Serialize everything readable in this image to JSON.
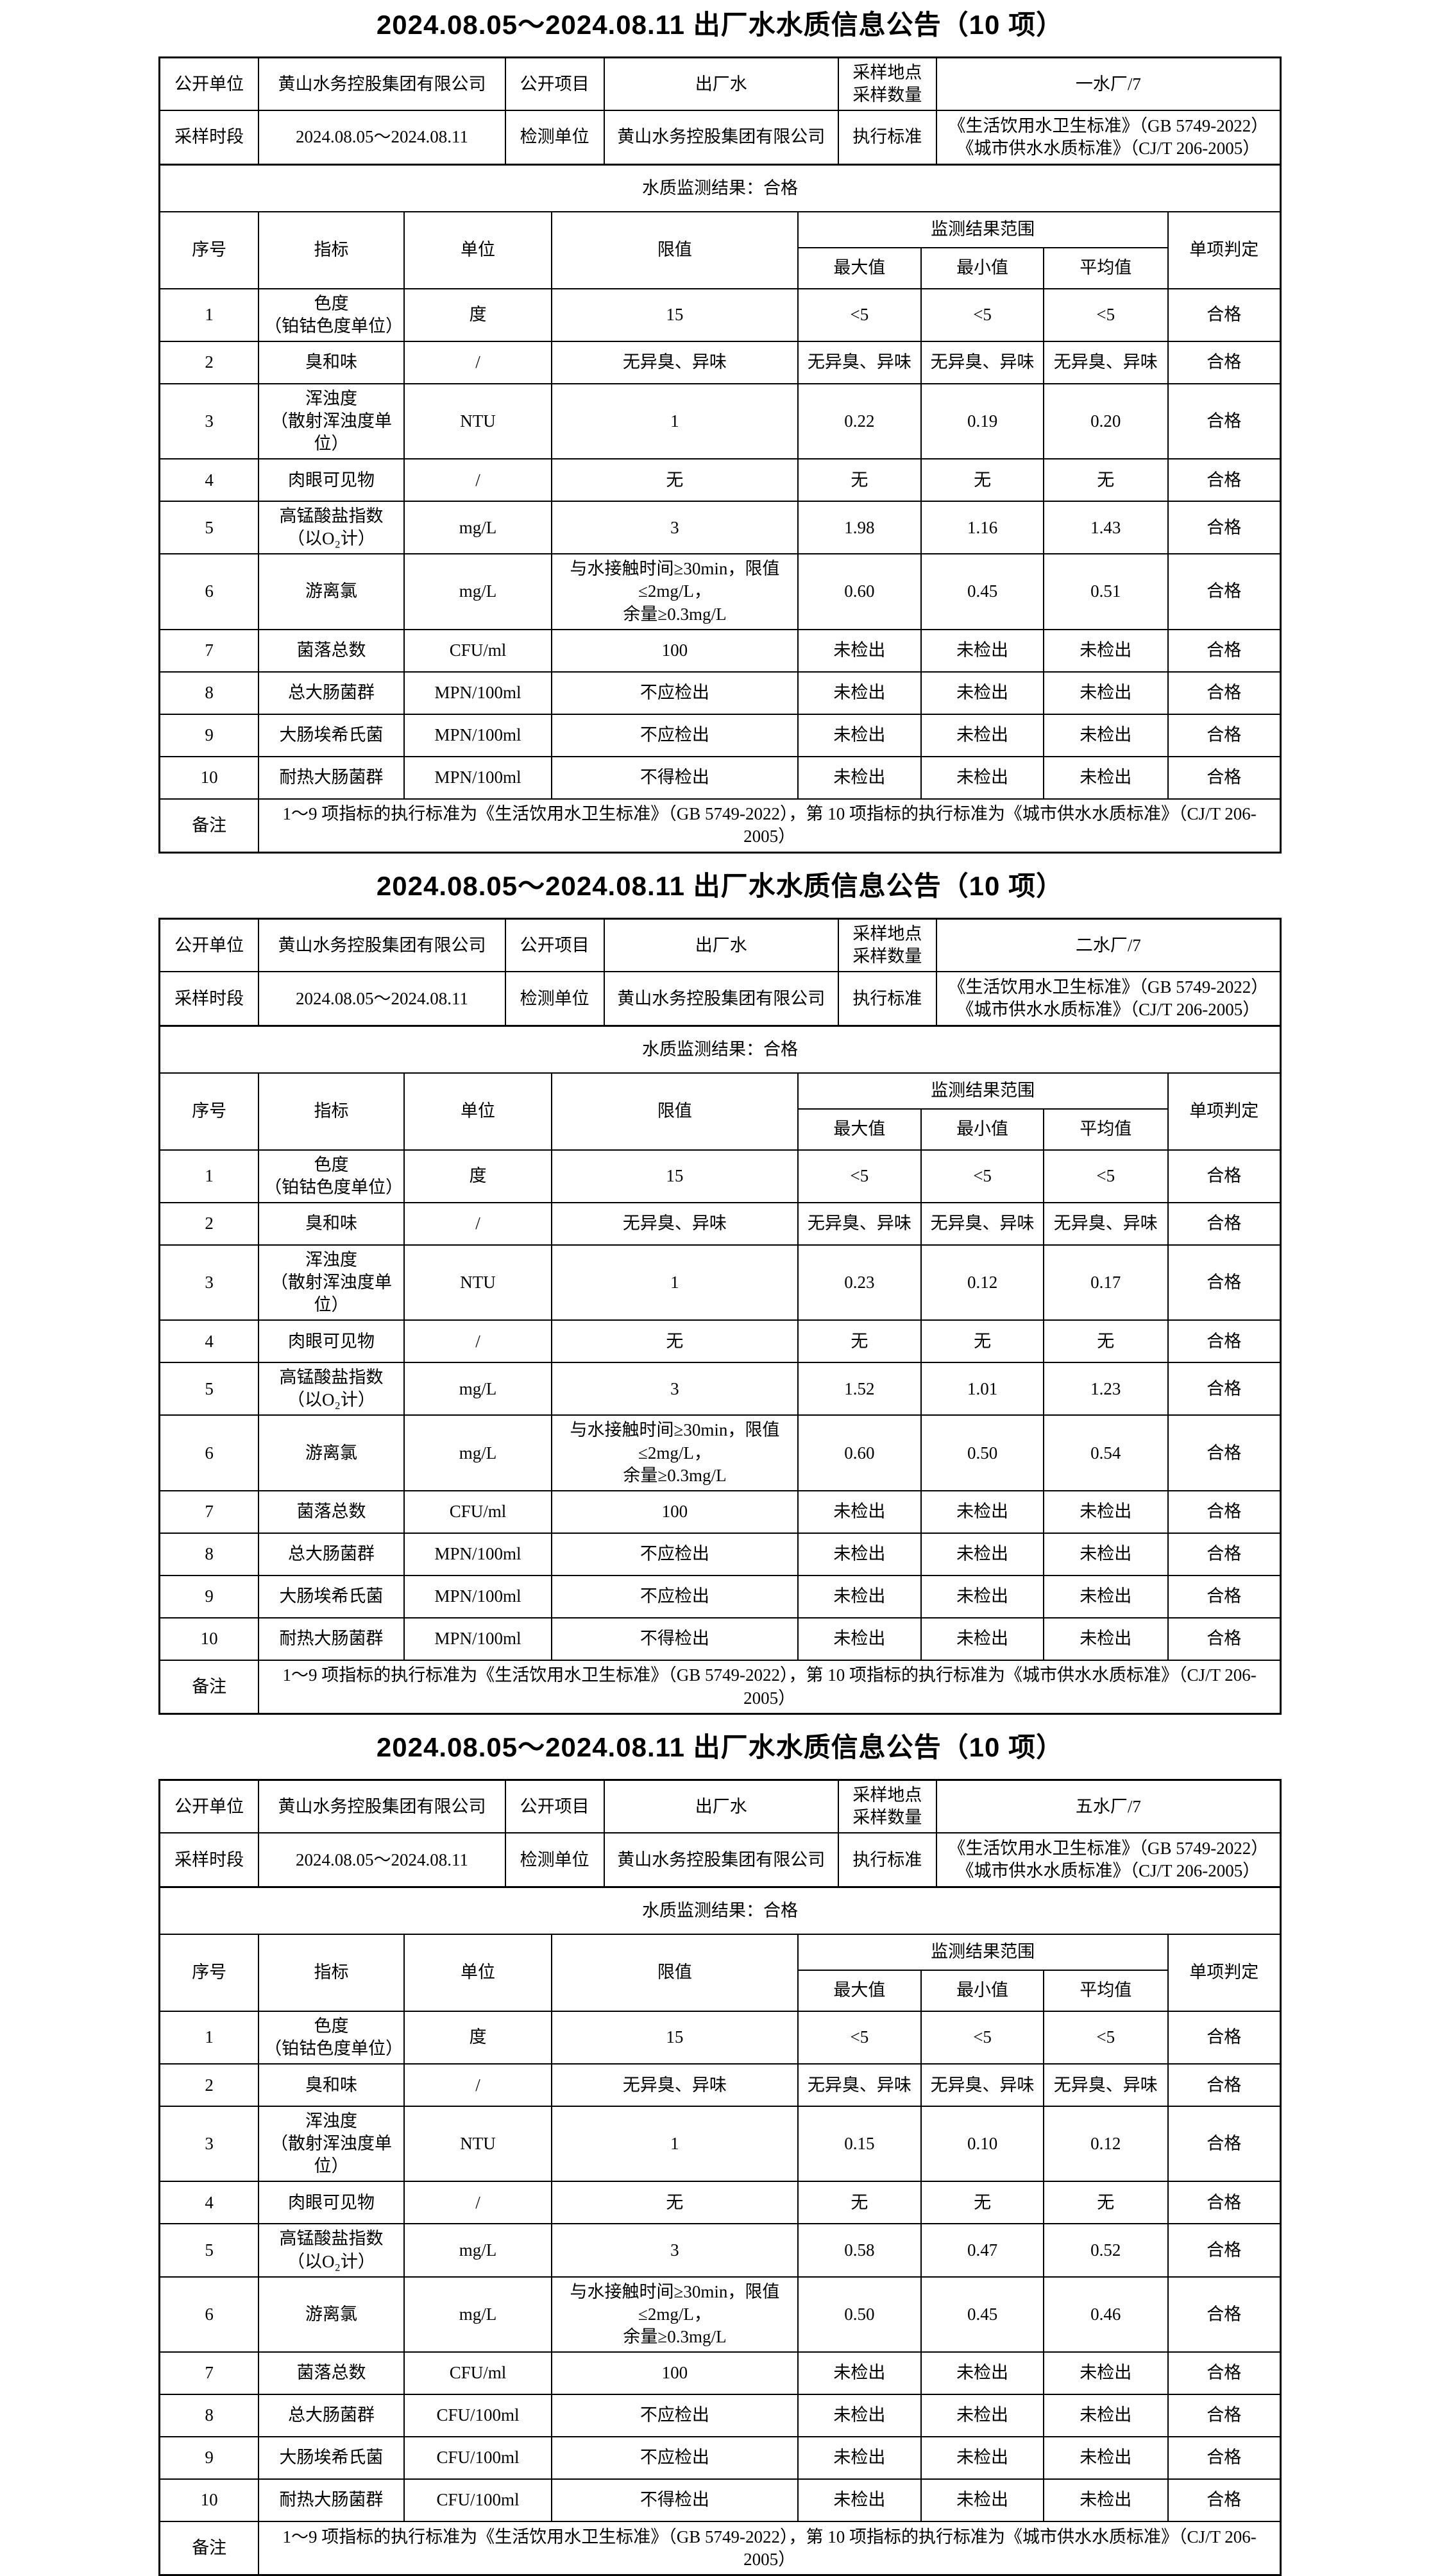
{
  "page": {
    "background": "#ffffff",
    "text_color": "#000000",
    "border_color": "#000000"
  },
  "sections": [
    {
      "title": "2024.08.05～2024.08.11 出厂水水质信息公告（10 项）",
      "info": {
        "public_unit_label": "公开单位",
        "public_unit": "黄山水务控股集团有限公司",
        "public_item_label": "公开项目",
        "public_item": "出厂水",
        "sampling_label": "采样地点\n采样数量",
        "sampling_value": "一水厂/7",
        "period_label": "采样时段",
        "period": "2024.08.05～2024.08.11",
        "test_unit_label": "检测单位",
        "test_unit": "黄山水务控股集团有限公司",
        "standard_label": "执行标准",
        "standard": "《生活饮用水卫生标准》（GB 5749-2022）\n《城市供水水质标准》（CJ/T 206-2005）"
      },
      "result": "水质监测结果：合格",
      "columns": {
        "seq": "序号",
        "indicator": "指标",
        "unit": "单位",
        "limit": "限值",
        "range": "监测结果范围",
        "max": "最大值",
        "min": "最小值",
        "avg": "平均值",
        "judge": "单项判定"
      },
      "rows": [
        {
          "seq": "1",
          "indicator": "色度\n（铂钴色度单位）",
          "unit": "度",
          "limit": "15",
          "max": "<5",
          "min": "<5",
          "avg": "<5",
          "judge": "合格"
        },
        {
          "seq": "2",
          "indicator": "臭和味",
          "unit": "/",
          "limit": "无异臭、异味",
          "max": "无异臭、异味",
          "min": "无异臭、异味",
          "avg": "无异臭、异味",
          "judge": "合格"
        },
        {
          "seq": "3",
          "indicator": "浑浊度\n（散射浑浊度单位）",
          "unit": "NTU",
          "limit": "1",
          "max": "0.22",
          "min": "0.19",
          "avg": "0.20",
          "judge": "合格"
        },
        {
          "seq": "4",
          "indicator": "肉眼可见物",
          "unit": "/",
          "limit": "无",
          "max": "无",
          "min": "无",
          "avg": "无",
          "judge": "合格"
        },
        {
          "seq": "5",
          "indicator": "高锰酸盐指数\n（以O₂计）",
          "unit": "mg/L",
          "limit": "3",
          "max": "1.98",
          "min": "1.16",
          "avg": "1.43",
          "judge": "合格"
        },
        {
          "seq": "6",
          "indicator": "游离氯",
          "unit": "mg/L",
          "limit": "与水接触时间≥30min，限值≤2mg/L，\n余量≥0.3mg/L",
          "max": "0.60",
          "min": "0.45",
          "avg": "0.51",
          "judge": "合格"
        },
        {
          "seq": "7",
          "indicator": "菌落总数",
          "unit": "CFU/ml",
          "limit": "100",
          "max": "未检出",
          "min": "未检出",
          "avg": "未检出",
          "judge": "合格"
        },
        {
          "seq": "8",
          "indicator": "总大肠菌群",
          "unit": "MPN/100ml",
          "limit": "不应检出",
          "max": "未检出",
          "min": "未检出",
          "avg": "未检出",
          "judge": "合格"
        },
        {
          "seq": "9",
          "indicator": "大肠埃希氏菌",
          "unit": "MPN/100ml",
          "limit": "不应检出",
          "max": "未检出",
          "min": "未检出",
          "avg": "未检出",
          "judge": "合格"
        },
        {
          "seq": "10",
          "indicator": "耐热大肠菌群",
          "unit": "MPN/100ml",
          "limit": "不得检出",
          "max": "未检出",
          "min": "未检出",
          "avg": "未检出",
          "judge": "合格"
        }
      ],
      "remark_label": "备注",
      "remark": "1～9 项指标的执行标准为《生活饮用水卫生标准》（GB 5749-2022），第 10 项指标的执行标准为《城市供水水质标准》（CJ/T 206-2005）"
    },
    {
      "title": "2024.08.05～2024.08.11 出厂水水质信息公告（10 项）",
      "info": {
        "public_unit_label": "公开单位",
        "public_unit": "黄山水务控股集团有限公司",
        "public_item_label": "公开项目",
        "public_item": "出厂水",
        "sampling_label": "采样地点\n采样数量",
        "sampling_value": "二水厂/7",
        "period_label": "采样时段",
        "period": "2024.08.05～2024.08.11",
        "test_unit_label": "检测单位",
        "test_unit": "黄山水务控股集团有限公司",
        "standard_label": "执行标准",
        "standard": "《生活饮用水卫生标准》（GB 5749-2022）\n《城市供水水质标准》（CJ/T 206-2005）"
      },
      "result": "水质监测结果：合格",
      "columns": {
        "seq": "序号",
        "indicator": "指标",
        "unit": "单位",
        "limit": "限值",
        "range": "监测结果范围",
        "max": "最大值",
        "min": "最小值",
        "avg": "平均值",
        "judge": "单项判定"
      },
      "rows": [
        {
          "seq": "1",
          "indicator": "色度\n（铂钴色度单位）",
          "unit": "度",
          "limit": "15",
          "max": "<5",
          "min": "<5",
          "avg": "<5",
          "judge": "合格"
        },
        {
          "seq": "2",
          "indicator": "臭和味",
          "unit": "/",
          "limit": "无异臭、异味",
          "max": "无异臭、异味",
          "min": "无异臭、异味",
          "avg": "无异臭、异味",
          "judge": "合格"
        },
        {
          "seq": "3",
          "indicator": "浑浊度\n（散射浑浊度单位）",
          "unit": "NTU",
          "limit": "1",
          "max": "0.23",
          "min": "0.12",
          "avg": "0.17",
          "judge": "合格"
        },
        {
          "seq": "4",
          "indicator": "肉眼可见物",
          "unit": "/",
          "limit": "无",
          "max": "无",
          "min": "无",
          "avg": "无",
          "judge": "合格"
        },
        {
          "seq": "5",
          "indicator": "高锰酸盐指数\n（以O₂计）",
          "unit": "mg/L",
          "limit": "3",
          "max": "1.52",
          "min": "1.01",
          "avg": "1.23",
          "judge": "合格"
        },
        {
          "seq": "6",
          "indicator": "游离氯",
          "unit": "mg/L",
          "limit": "与水接触时间≥30min，限值≤2mg/L，\n余量≥0.3mg/L",
          "max": "0.60",
          "min": "0.50",
          "avg": "0.54",
          "judge": "合格"
        },
        {
          "seq": "7",
          "indicator": "菌落总数",
          "unit": "CFU/ml",
          "limit": "100",
          "max": "未检出",
          "min": "未检出",
          "avg": "未检出",
          "judge": "合格"
        },
        {
          "seq": "8",
          "indicator": "总大肠菌群",
          "unit": "MPN/100ml",
          "limit": "不应检出",
          "max": "未检出",
          "min": "未检出",
          "avg": "未检出",
          "judge": "合格"
        },
        {
          "seq": "9",
          "indicator": "大肠埃希氏菌",
          "unit": "MPN/100ml",
          "limit": "不应检出",
          "max": "未检出",
          "min": "未检出",
          "avg": "未检出",
          "judge": "合格"
        },
        {
          "seq": "10",
          "indicator": "耐热大肠菌群",
          "unit": "MPN/100ml",
          "limit": "不得检出",
          "max": "未检出",
          "min": "未检出",
          "avg": "未检出",
          "judge": "合格"
        }
      ],
      "remark_label": "备注",
      "remark": "1～9 项指标的执行标准为《生活饮用水卫生标准》（GB 5749-2022），第 10 项指标的执行标准为《城市供水水质标准》（CJ/T 206-2005）"
    },
    {
      "title": "2024.08.05～2024.08.11 出厂水水质信息公告（10 项）",
      "info": {
        "public_unit_label": "公开单位",
        "public_unit": "黄山水务控股集团有限公司",
        "public_item_label": "公开项目",
        "public_item": "出厂水",
        "sampling_label": "采样地点\n采样数量",
        "sampling_value": "五水厂/7",
        "period_label": "采样时段",
        "period": "2024.08.05～2024.08.11",
        "test_unit_label": "检测单位",
        "test_unit": "黄山水务控股集团有限公司",
        "standard_label": "执行标准",
        "standard": "《生活饮用水卫生标准》（GB 5749-2022）\n《城市供水水质标准》（CJ/T 206-2005）"
      },
      "result": "水质监测结果：合格",
      "columns": {
        "seq": "序号",
        "indicator": "指标",
        "unit": "单位",
        "limit": "限值",
        "range": "监测结果范围",
        "max": "最大值",
        "min": "最小值",
        "avg": "平均值",
        "judge": "单项判定"
      },
      "rows": [
        {
          "seq": "1",
          "indicator": "色度\n（铂钴色度单位）",
          "unit": "度",
          "limit": "15",
          "max": "<5",
          "min": "<5",
          "avg": "<5",
          "judge": "合格"
        },
        {
          "seq": "2",
          "indicator": "臭和味",
          "unit": "/",
          "limit": "无异臭、异味",
          "max": "无异臭、异味",
          "min": "无异臭、异味",
          "avg": "无异臭、异味",
          "judge": "合格"
        },
        {
          "seq": "3",
          "indicator": "浑浊度\n（散射浑浊度单位）",
          "unit": "NTU",
          "limit": "1",
          "max": "0.15",
          "min": "0.10",
          "avg": "0.12",
          "judge": "合格"
        },
        {
          "seq": "4",
          "indicator": "肉眼可见物",
          "unit": "/",
          "limit": "无",
          "max": "无",
          "min": "无",
          "avg": "无",
          "judge": "合格"
        },
        {
          "seq": "5",
          "indicator": "高锰酸盐指数\n（以O₂计）",
          "unit": "mg/L",
          "limit": "3",
          "max": "0.58",
          "min": "0.47",
          "avg": "0.52",
          "judge": "合格"
        },
        {
          "seq": "6",
          "indicator": "游离氯",
          "unit": "mg/L",
          "limit": "与水接触时间≥30min，限值≤2mg/L，\n余量≥0.3mg/L",
          "max": "0.50",
          "min": "0.45",
          "avg": "0.46",
          "judge": "合格"
        },
        {
          "seq": "7",
          "indicator": "菌落总数",
          "unit": "CFU/ml",
          "limit": "100",
          "max": "未检出",
          "min": "未检出",
          "avg": "未检出",
          "judge": "合格"
        },
        {
          "seq": "8",
          "indicator": "总大肠菌群",
          "unit": "CFU/100ml",
          "limit": "不应检出",
          "max": "未检出",
          "min": "未检出",
          "avg": "未检出",
          "judge": "合格"
        },
        {
          "seq": "9",
          "indicator": "大肠埃希氏菌",
          "unit": "CFU/100ml",
          "limit": "不应检出",
          "max": "未检出",
          "min": "未检出",
          "avg": "未检出",
          "judge": "合格"
        },
        {
          "seq": "10",
          "indicator": "耐热大肠菌群",
          "unit": "CFU/100ml",
          "limit": "不得检出",
          "max": "未检出",
          "min": "未检出",
          "avg": "未检出",
          "judge": "合格"
        }
      ],
      "remark_label": "备注",
      "remark": "1～9 项指标的执行标准为《生活饮用水卫生标准》（GB 5749-2022），第 10 项指标的执行标准为《城市供水水质标准》（CJ/T 206-2005）"
    }
  ]
}
